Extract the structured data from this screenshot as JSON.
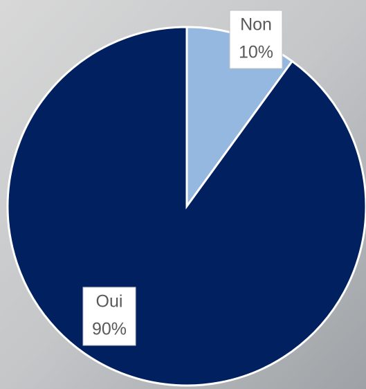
{
  "chart_data": {
    "type": "pie",
    "categories": [
      "Non",
      "Oui"
    ],
    "values": [
      10,
      90
    ],
    "value_labels": [
      "10%",
      "90%"
    ],
    "colors": [
      "#95b8e0",
      "#002060"
    ]
  }
}
